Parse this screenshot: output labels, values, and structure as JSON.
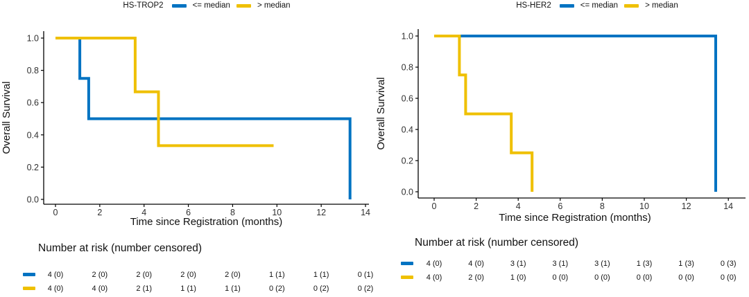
{
  "colors": {
    "group_le_median": "#0073C2",
    "group_gt_median": "#EFC000",
    "axis": "#000000",
    "text": "#1a1a1a"
  },
  "chart_data": [
    {
      "type": "line",
      "subtype": "kaplan_meier_step",
      "legend_title": "HS-TROP2",
      "xlabel": "Time since Registration (months)",
      "ylabel": "Overall Survival",
      "xlim": [
        0,
        14
      ],
      "ylim": [
        0.0,
        1.0
      ],
      "grid": false,
      "legend_position": "top-center",
      "x_ticks": [
        0,
        2,
        4,
        6,
        8,
        10,
        12,
        14
      ],
      "y_ticks": [
        0.0,
        0.2,
        0.4,
        0.6,
        0.8,
        1.0
      ],
      "y_tick_labels": [
        "0.0",
        "0.2",
        "0.4",
        "0.6",
        "0.8",
        "1.0"
      ],
      "series": [
        {
          "name": "<= median",
          "color": "#0073C2",
          "points": [
            [
              0,
              1.0
            ],
            [
              1.1,
              1.0
            ],
            [
              1.1,
              0.75
            ],
            [
              1.5,
              0.75
            ],
            [
              1.5,
              0.5
            ],
            [
              13.3,
              0.5
            ],
            [
              13.3,
              0.0
            ]
          ]
        },
        {
          "name": "> median",
          "color": "#EFC000",
          "points": [
            [
              0,
              1.0
            ],
            [
              3.6,
              1.0
            ],
            [
              3.6,
              0.667
            ],
            [
              4.65,
              0.667
            ],
            [
              4.65,
              0.333
            ],
            [
              9.85,
              0.333
            ]
          ]
        }
      ],
      "risk_table": {
        "title": "Number at risk (number censored)",
        "times": [
          0,
          2,
          4,
          6,
          8,
          10,
          12,
          14
        ],
        "rows": [
          {
            "name": "<= median",
            "color": "#0073C2",
            "values": [
              "4 (0)",
              "2 (0)",
              "2 (0)",
              "2 (0)",
              "2 (0)",
              "1 (1)",
              "1 (1)",
              "0 (1)"
            ]
          },
          {
            "name": "> median",
            "color": "#EFC000",
            "values": [
              "4 (0)",
              "4 (0)",
              "2 (1)",
              "1 (1)",
              "1 (1)",
              "0 (2)",
              "0 (2)",
              "0 (2)"
            ]
          }
        ]
      }
    },
    {
      "type": "line",
      "subtype": "kaplan_meier_step",
      "legend_title": "HS-HER2",
      "xlabel": "Time since Registration (months)",
      "ylabel": "Overall Survival",
      "xlim": [
        0,
        14
      ],
      "ylim": [
        0.0,
        1.0
      ],
      "grid": false,
      "legend_position": "top-center",
      "x_ticks": [
        0,
        2,
        4,
        6,
        8,
        10,
        12,
        14
      ],
      "y_ticks": [
        0.0,
        0.2,
        0.4,
        0.6,
        0.8,
        1.0
      ],
      "y_tick_labels": [
        "0.0",
        "0.2",
        "0.4",
        "0.6",
        "0.8",
        "1.0"
      ],
      "series": [
        {
          "name": "<= median",
          "color": "#0073C2",
          "points": [
            [
              0,
              1.0
            ],
            [
              13.4,
              1.0
            ],
            [
              13.4,
              0.0
            ]
          ]
        },
        {
          "name": "> median",
          "color": "#EFC000",
          "points": [
            [
              0,
              1.0
            ],
            [
              1.2,
              1.0
            ],
            [
              1.2,
              0.75
            ],
            [
              1.5,
              0.75
            ],
            [
              1.5,
              0.5
            ],
            [
              3.67,
              0.5
            ],
            [
              3.67,
              0.25
            ],
            [
              4.66,
              0.25
            ],
            [
              4.66,
              0.0
            ]
          ]
        }
      ],
      "risk_table": {
        "title": "Number at risk (number censored)",
        "times": [
          0,
          2,
          4,
          6,
          8,
          10,
          12,
          14
        ],
        "rows": [
          {
            "name": "<= median",
            "color": "#0073C2",
            "values": [
              "4 (0)",
              "4 (0)",
              "3 (1)",
              "3 (1)",
              "3 (1)",
              "1 (3)",
              "1 (3)",
              "0 (3)"
            ]
          },
          {
            "name": "> median",
            "color": "#EFC000",
            "values": [
              "4 (0)",
              "2 (0)",
              "1 (0)",
              "0 (0)",
              "0 (0)",
              "0 (0)",
              "0 (0)",
              "0 (0)"
            ]
          }
        ]
      }
    }
  ]
}
